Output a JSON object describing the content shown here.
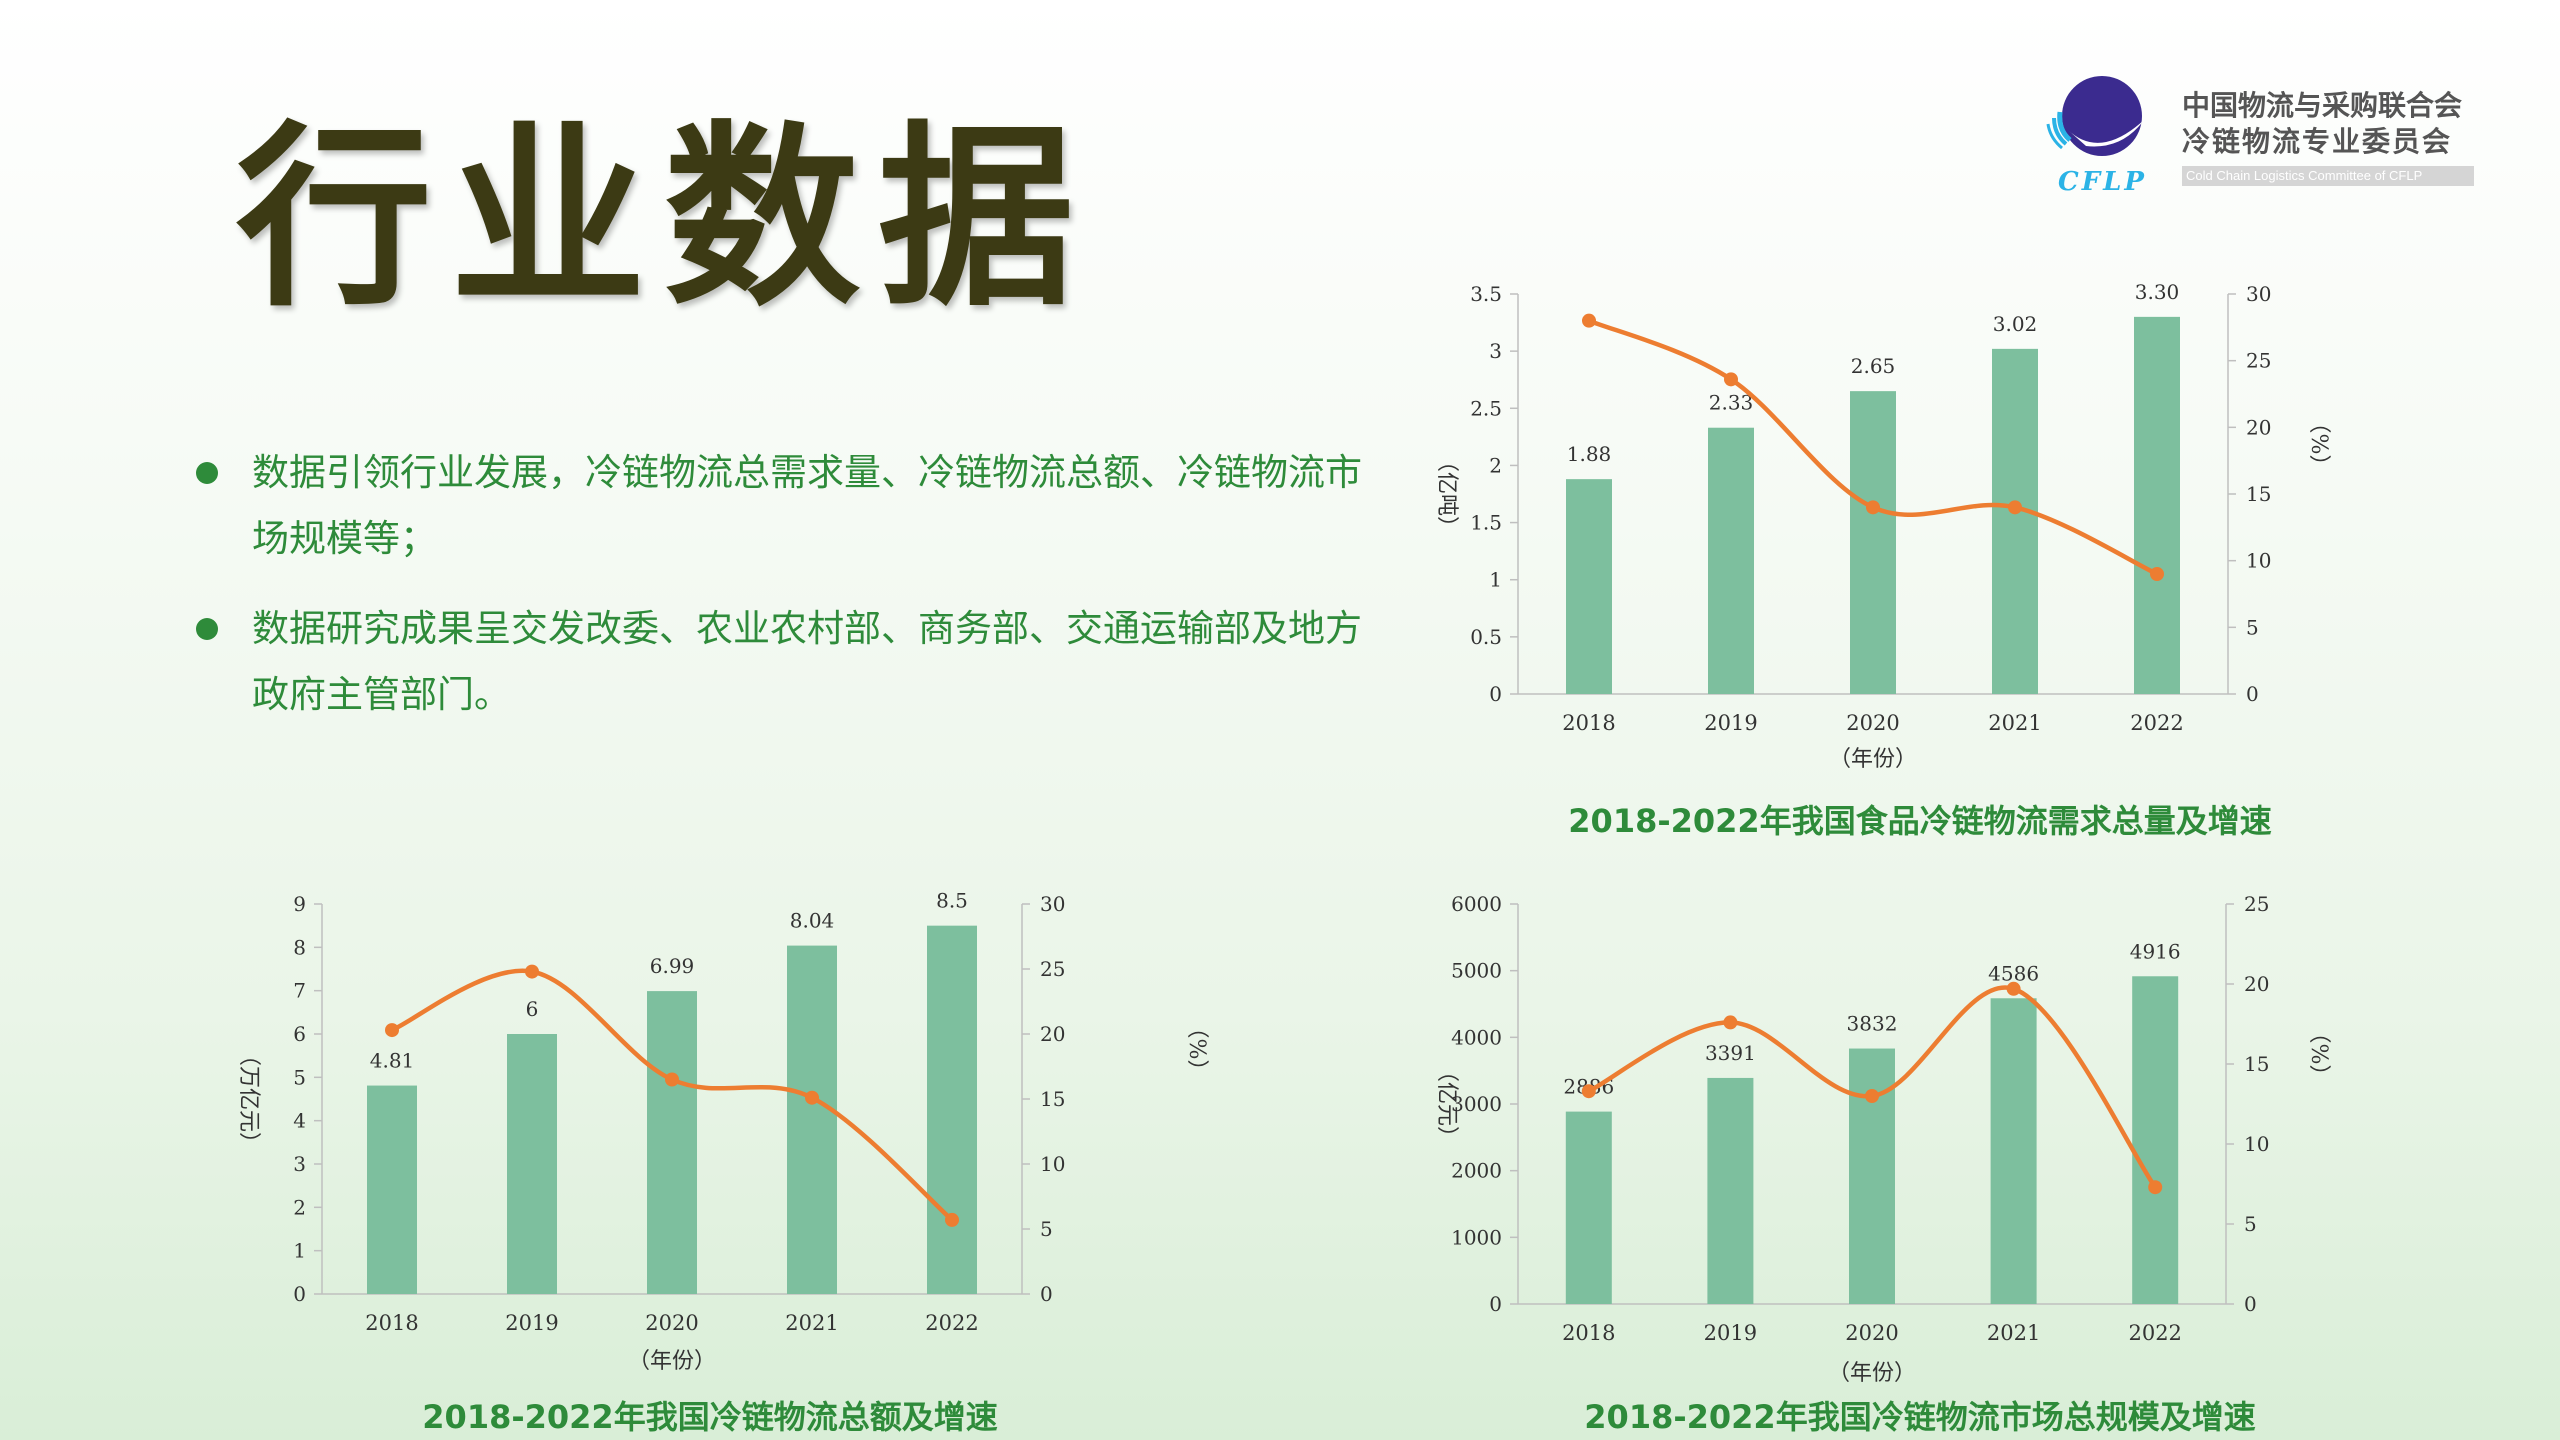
{
  "title": "行业数据",
  "bullets": [
    "数据引领行业发展，冷链物流总需求量、冷链物流总额、冷链物流市场规模等；",
    "数据研究成果呈交发改委、农业农村部、商务部、交通运输部及地方政府主管部门。"
  ],
  "logo": {
    "cn_line1": "中国物流与采购联合会",
    "cn_line2": "冷链物流专业委员会",
    "abbr": "CFLP",
    "en": "Cold Chain Logistics Committee of CFLP"
  },
  "colors": {
    "bar": "#7dbf9e",
    "line": "#ed7d31",
    "caption": "#2e8b3a"
  },
  "chart_data": [
    {
      "type": "bar",
      "title": "2018-2022年我国食品冷链物流需求总量及增速",
      "xlabel": "（年份）",
      "ylabel": "（亿吨）",
      "y2label": "（%）",
      "categories": [
        "2018",
        "2019",
        "2020",
        "2021",
        "2022"
      ],
      "values": [
        1.88,
        2.33,
        2.65,
        3.02,
        3.3
      ],
      "value_labels": [
        "1.88",
        "2.33",
        "2.65",
        "3.02",
        "3.30"
      ],
      "ylim": [
        0,
        3.5
      ],
      "yticks": [
        "0",
        "0.5",
        "1",
        "1.5",
        "2",
        "2.5",
        "3",
        "3.5"
      ],
      "y2": [
        28,
        23.6,
        14,
        14,
        9
      ],
      "y2lim": [
        0,
        30
      ],
      "y2ticks": [
        "0",
        "5",
        "10",
        "15",
        "20",
        "25",
        "30"
      ],
      "grid": false
    },
    {
      "type": "bar",
      "title": "2018-2022年我国冷链物流总额及增速",
      "xlabel": "（年份）",
      "ylabel": "（万亿元）",
      "y2label": "（%）",
      "categories": [
        "2018",
        "2019",
        "2020",
        "2021",
        "2022"
      ],
      "values": [
        4.81,
        6,
        6.99,
        8.04,
        8.5
      ],
      "value_labels": [
        "4.81",
        "6",
        "6.99",
        "8.04",
        "8.5"
      ],
      "ylim": [
        0,
        9
      ],
      "yticks": [
        "0",
        "1",
        "2",
        "3",
        "4",
        "5",
        "6",
        "7",
        "8",
        "9"
      ],
      "y2": [
        20.3,
        24.8,
        16.5,
        15.1,
        5.7
      ],
      "y2lim": [
        0,
        30
      ],
      "y2ticks": [
        "0",
        "5",
        "10",
        "15",
        "20",
        "25",
        "30"
      ],
      "grid": false
    },
    {
      "type": "bar",
      "title": "2018-2022年我国冷链物流市场总规模及增速",
      "xlabel": "（年份）",
      "ylabel": "（亿元）",
      "y2label": "（%）",
      "categories": [
        "2018",
        "2019",
        "2020",
        "2021",
        "2022"
      ],
      "values": [
        2886,
        3391,
        3832,
        4586,
        4916
      ],
      "value_labels": [
        "2886",
        "3391",
        "3832",
        "4586",
        "4916"
      ],
      "ylim": [
        0,
        6000
      ],
      "yticks": [
        "0",
        "1000",
        "2000",
        "3000",
        "4000",
        "5000",
        "6000"
      ],
      "y2": [
        13.3,
        17.6,
        13,
        19.7,
        7.3
      ],
      "y2lim": [
        0,
        25
      ],
      "y2ticks": [
        "0",
        "5",
        "10",
        "15",
        "20",
        "25"
      ],
      "grid": false
    }
  ]
}
